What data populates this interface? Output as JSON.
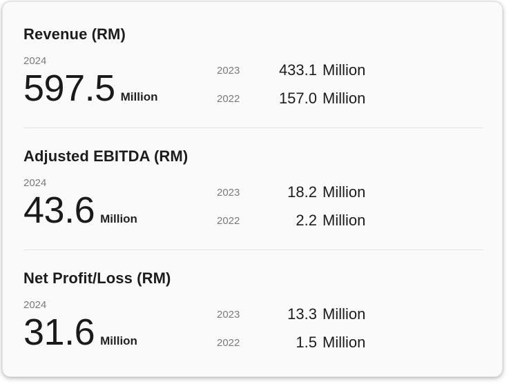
{
  "metrics": [
    {
      "title": "Revenue (RM)",
      "current": {
        "year": "2024",
        "value": "597.5",
        "unit": "Million"
      },
      "previous": [
        {
          "year": "2023",
          "value": "433.1",
          "unit": "Million"
        },
        {
          "year": "2022",
          "value": "157.0",
          "unit": "Million"
        }
      ]
    },
    {
      "title": "Adjusted EBITDA (RM)",
      "current": {
        "year": "2024",
        "value": "43.6",
        "unit": "Million"
      },
      "previous": [
        {
          "year": "2023",
          "value": "18.2",
          "unit": "Million"
        },
        {
          "year": "2022",
          "value": "2.2",
          "unit": "Million"
        }
      ]
    },
    {
      "title": "Net Profit/Loss (RM)",
      "current": {
        "year": "2024",
        "value": "31.6",
        "unit": "Million"
      },
      "previous": [
        {
          "year": "2023",
          "value": "13.3",
          "unit": "Million"
        },
        {
          "year": "2022",
          "value": "1.5",
          "unit": "Million"
        }
      ]
    }
  ]
}
